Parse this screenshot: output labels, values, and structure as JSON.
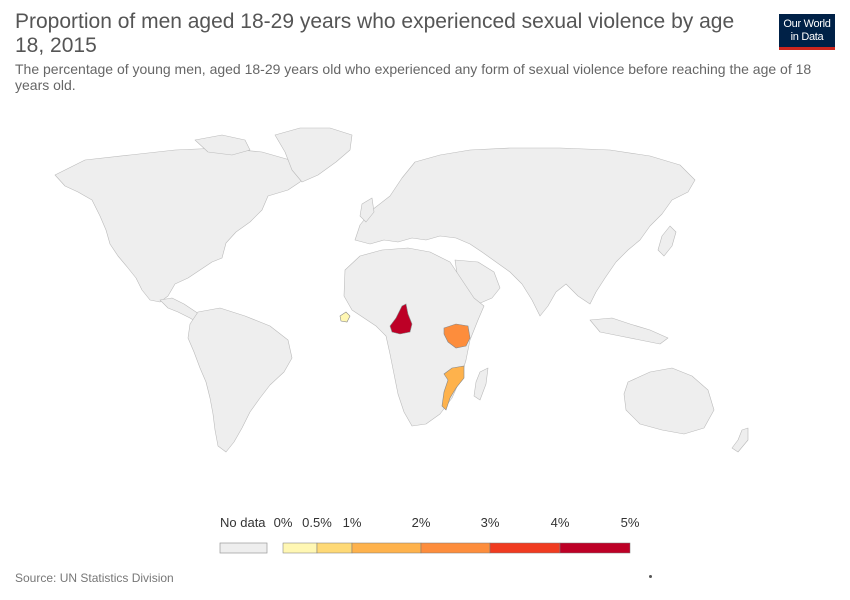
{
  "header": {
    "title": "Proportion of men aged 18-29 years who experienced sexual violence by age 18, 2015",
    "subtitle": "The percentage of young men, aged 18-29 years old who experienced any form of sexual violence before reaching the age of 18 years old."
  },
  "logo": {
    "line1": "Our World",
    "line2": "in Data"
  },
  "legend": {
    "no_data_label": "No data",
    "no_data_color": "#eeeeee",
    "bins": [
      {
        "label_low": "0%",
        "label_high": "0.5%",
        "color": "#fff7b3"
      },
      {
        "label_low": "0.5%",
        "label_high": "1%",
        "color": "#fed976"
      },
      {
        "label_low": "1%",
        "label_high": "2%",
        "color": "#feb24c"
      },
      {
        "label_low": "2%",
        "label_high": "3%",
        "color": "#fd8d3c"
      },
      {
        "label_low": "3%",
        "label_high": "4%",
        "color": "#f03b20"
      },
      {
        "label_low": "4%",
        "label_high": "5%",
        "color": "#bd0026"
      }
    ],
    "ticks": [
      "0%",
      "0.5%",
      "1%",
      "2%",
      "3%",
      "4%",
      "5%"
    ]
  },
  "map_data": {
    "no_data_color": "#eeeeee",
    "border_color": "#bbbbbb",
    "countries": [
      {
        "name": "Sierra Leone",
        "value_pct": 0.4,
        "color": "#fff7b3"
      },
      {
        "name": "Cameroon",
        "value_pct": 4.5,
        "color": "#bd0026"
      },
      {
        "name": "Kenya",
        "value_pct": 2.5,
        "color": "#fd8d3c"
      },
      {
        "name": "Mozambique",
        "value_pct": 1.8,
        "color": "#feb24c"
      }
    ]
  },
  "footer": {
    "source": "Source: UN Statistics Division"
  }
}
